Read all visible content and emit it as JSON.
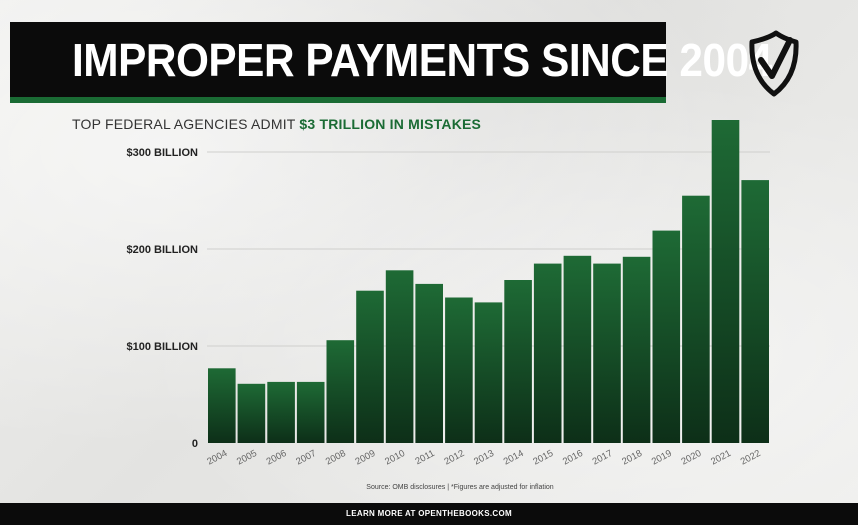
{
  "header": {
    "title": "IMPROPER PAYMENTS SINCE 2004",
    "subtitle_lead": "TOP FEDERAL AGENCIES ADMIT ",
    "subtitle_accent": "$3 TRILLION IN MISTAKES"
  },
  "footer": {
    "text": "LEARN MORE AT OPENTHEBOOKS.COM",
    "source": "Source: OMB disclosures | *Figures are adjusted for inflation"
  },
  "icons": {
    "logo": "shield-check-icon"
  },
  "colors": {
    "bar_top": "#1e6a35",
    "bar_bottom": "#0d2f18",
    "accent": "#1a6b34",
    "banner": "#0b0b0b"
  },
  "chart_data": {
    "type": "bar",
    "title": "IMPROPER PAYMENTS SINCE 2004",
    "categories": [
      "2004",
      "2005",
      "2006",
      "2007",
      "2008",
      "2009",
      "2010",
      "2011",
      "2012",
      "2013",
      "2014",
      "2015",
      "2016",
      "2017",
      "2018",
      "2019",
      "2020",
      "2021",
      "2022"
    ],
    "values": [
      77,
      61,
      63,
      63,
      106,
      157,
      178,
      164,
      150,
      145,
      168,
      185,
      193,
      185,
      192,
      219,
      255,
      333,
      271
    ],
    "ylim": [
      0,
      330
    ],
    "yticks": [
      {
        "value": 0,
        "label": "0"
      },
      {
        "value": 100,
        "label": "$100 BILLION"
      },
      {
        "value": 200,
        "label": "$200 BILLION"
      },
      {
        "value": 300,
        "label": "$300 BILLION"
      }
    ],
    "grid": true,
    "legend": "none"
  }
}
